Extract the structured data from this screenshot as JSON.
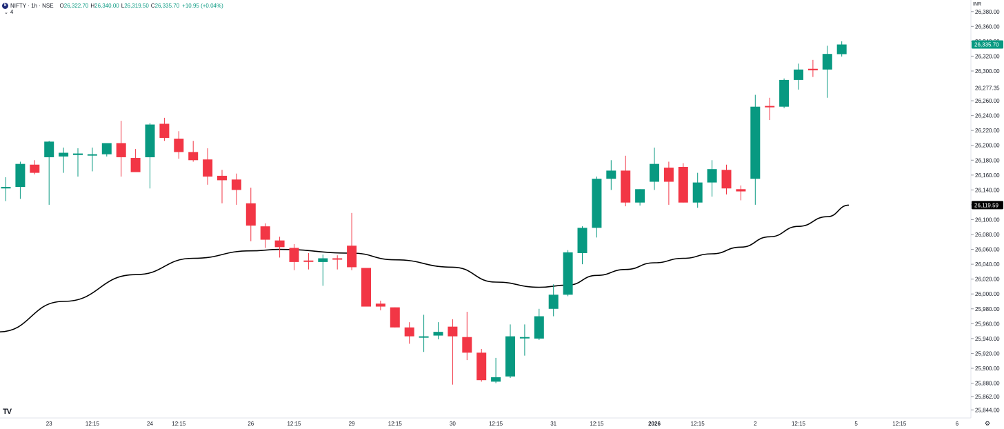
{
  "header": {
    "symbol": "NIFTY · 1h · NSE",
    "open_label": "O",
    "open": "26,322.70",
    "high_label": "H",
    "high": "26,340.00",
    "low_label": "L",
    "low": "26,319.50",
    "close_label": "C",
    "close": "26,335.70",
    "change": "+10.95 (+0.04%)",
    "indicator_count": "4"
  },
  "currency": "INR",
  "colors": {
    "up": "#089981",
    "down": "#f23645",
    "ma": "#000000",
    "axis_text": "#131722"
  },
  "chart_data": {
    "type": "candlestick",
    "ylim": [
      25835,
      26390
    ],
    "y_ticks": [
      25844,
      25862,
      25880,
      25900,
      25920,
      25940,
      25960,
      25980,
      26000,
      26020,
      26040,
      26060,
      26080,
      26100,
      26120,
      26140,
      26160,
      26180,
      26200,
      26220,
      26240,
      26260,
      26300,
      26320,
      26340,
      26360,
      26380
    ],
    "y_tick_labels": [
      "25,844.00",
      "25,862.00",
      "25,880.00",
      "25,900.00",
      "25,920.00",
      "25,940.00",
      "25,960.00",
      "25,980.00",
      "26,000.00",
      "26,020.00",
      "26,040.00",
      "26,060.00",
      "26,080.00",
      "26,100.00",
      "26,120.00",
      "26,140.00",
      "26,160.00",
      "26,180.00",
      "26,200.00",
      "26,220.00",
      "26,240.00",
      "26,260.00",
      "26,300.00",
      "26,320.00",
      "26,340.00",
      "26,360.00",
      "26,380.00"
    ],
    "x_labels": [
      {
        "index": 3,
        "label": "23",
        "bold": false
      },
      {
        "index": 6,
        "label": "12:15",
        "bold": false
      },
      {
        "index": 10,
        "label": "24",
        "bold": false
      },
      {
        "index": 12,
        "label": "12:15",
        "bold": false
      },
      {
        "index": 17,
        "label": "26",
        "bold": false
      },
      {
        "index": 20,
        "label": "12:15",
        "bold": false
      },
      {
        "index": 24,
        "label": "29",
        "bold": false
      },
      {
        "index": 27,
        "label": "12:15",
        "bold": false
      },
      {
        "index": 31,
        "label": "30",
        "bold": false
      },
      {
        "index": 34,
        "label": "12:15",
        "bold": false
      },
      {
        "index": 38,
        "label": "31",
        "bold": false
      },
      {
        "index": 41,
        "label": "12:15",
        "bold": false
      },
      {
        "index": 45,
        "label": "2026",
        "bold": true
      },
      {
        "index": 48,
        "label": "12:15",
        "bold": false
      },
      {
        "index": 52,
        "label": "2",
        "bold": false
      },
      {
        "index": 55,
        "label": "12:15",
        "bold": false
      },
      {
        "index": 59,
        "label": "5",
        "bold": false
      },
      {
        "index": 62,
        "label": "12:15",
        "bold": false
      },
      {
        "index": 66,
        "label": "6",
        "bold": false
      }
    ],
    "candles": [
      {
        "o": 26142,
        "h": 26157,
        "l": 26125,
        "c": 26144
      },
      {
        "o": 26144,
        "h": 26178,
        "l": 26128,
        "c": 26175
      },
      {
        "o": 26174,
        "h": 26180,
        "l": 26161,
        "c": 26163
      },
      {
        "o": 26184,
        "h": 26206,
        "l": 26120,
        "c": 26205
      },
      {
        "o": 26185,
        "h": 26197,
        "l": 26163,
        "c": 26190
      },
      {
        "o": 26187,
        "h": 26196,
        "l": 26158,
        "c": 26189
      },
      {
        "o": 26187,
        "h": 26197,
        "l": 26165,
        "c": 26188
      },
      {
        "o": 26188,
        "h": 26203,
        "l": 26185,
        "c": 26203
      },
      {
        "o": 26203,
        "h": 26233,
        "l": 26158,
        "c": 26184
      },
      {
        "o": 26183,
        "h": 26195,
        "l": 26165,
        "c": 26164
      },
      {
        "o": 26184,
        "h": 26230,
        "l": 26142,
        "c": 26228
      },
      {
        "o": 26229,
        "h": 26237,
        "l": 26206,
        "c": 26210
      },
      {
        "o": 26209,
        "h": 26219,
        "l": 26182,
        "c": 26191
      },
      {
        "o": 26191,
        "h": 26206,
        "l": 26178,
        "c": 26180
      },
      {
        "o": 26181,
        "h": 26196,
        "l": 26147,
        "c": 26158
      },
      {
        "o": 26159,
        "h": 26167,
        "l": 26122,
        "c": 26153
      },
      {
        "o": 26154,
        "h": 26162,
        "l": 26120,
        "c": 26140
      },
      {
        "o": 26122,
        "h": 26143,
        "l": 26071,
        "c": 26092
      },
      {
        "o": 26091,
        "h": 26095,
        "l": 26062,
        "c": 26073
      },
      {
        "o": 26072,
        "h": 26077,
        "l": 26049,
        "c": 26063
      },
      {
        "o": 26062,
        "h": 26067,
        "l": 26032,
        "c": 26043
      },
      {
        "o": 26045,
        "h": 26055,
        "l": 26033,
        "c": 26044
      },
      {
        "o": 26043,
        "h": 26053,
        "l": 26011,
        "c": 26048
      },
      {
        "o": 26048,
        "h": 26052,
        "l": 26033,
        "c": 26047
      },
      {
        "o": 26065,
        "h": 26109,
        "l": 26032,
        "c": 26036
      },
      {
        "o": 26035,
        "h": 26035,
        "l": 25983,
        "c": 25983
      },
      {
        "o": 25987,
        "h": 25991,
        "l": 25978,
        "c": 25983
      },
      {
        "o": 25982,
        "h": 25982,
        "l": 25955,
        "c": 25955
      },
      {
        "o": 25955,
        "h": 25962,
        "l": 25933,
        "c": 25943
      },
      {
        "o": 25943,
        "h": 25972,
        "l": 25922,
        "c": 25943
      },
      {
        "o": 25944,
        "h": 25962,
        "l": 25939,
        "c": 25949
      },
      {
        "o": 25956,
        "h": 25966,
        "l": 25878,
        "c": 25943
      },
      {
        "o": 25942,
        "h": 25976,
        "l": 25911,
        "c": 25921
      },
      {
        "o": 25921,
        "h": 25926,
        "l": 25882,
        "c": 25884
      },
      {
        "o": 25882,
        "h": 25914,
        "l": 25880,
        "c": 25888
      },
      {
        "o": 25889,
        "h": 25959,
        "l": 25887,
        "c": 25943
      },
      {
        "o": 25942,
        "h": 25959,
        "l": 25917,
        "c": 25942
      },
      {
        "o": 25940,
        "h": 25980,
        "l": 25938,
        "c": 25970
      },
      {
        "o": 25980,
        "h": 26013,
        "l": 25970,
        "c": 25999
      },
      {
        "o": 25999,
        "h": 26059,
        "l": 25997,
        "c": 26056
      },
      {
        "o": 26055,
        "h": 26091,
        "l": 26040,
        "c": 26089
      },
      {
        "o": 26089,
        "h": 26158,
        "l": 26076,
        "c": 26155
      },
      {
        "o": 26155,
        "h": 26180,
        "l": 26140,
        "c": 26166
      },
      {
        "o": 26166,
        "h": 26186,
        "l": 26118,
        "c": 26123
      },
      {
        "o": 26123,
        "h": 26141,
        "l": 26119,
        "c": 26141
      },
      {
        "o": 26151,
        "h": 26197,
        "l": 26140,
        "c": 26175
      },
      {
        "o": 26170,
        "h": 26178,
        "l": 26120,
        "c": 26151
      },
      {
        "o": 26171,
        "h": 26176,
        "l": 26123,
        "c": 26123
      },
      {
        "o": 26123,
        "h": 26163,
        "l": 26116,
        "c": 26150
      },
      {
        "o": 26150,
        "h": 26180,
        "l": 26131,
        "c": 26168
      },
      {
        "o": 26167,
        "h": 26174,
        "l": 26134,
        "c": 26142
      },
      {
        "o": 26141,
        "h": 26146,
        "l": 26126,
        "c": 26138
      },
      {
        "o": 26155,
        "h": 26268,
        "l": 26120,
        "c": 26252
      },
      {
        "o": 26253,
        "h": 26264,
        "l": 26234,
        "c": 26252
      },
      {
        "o": 26252,
        "h": 26290,
        "l": 26250,
        "c": 26288
      },
      {
        "o": 26288,
        "h": 26310,
        "l": 26275,
        "c": 26302
      },
      {
        "o": 26303,
        "h": 26315,
        "l": 26292,
        "c": 26301
      },
      {
        "o": 26302,
        "h": 26334,
        "l": 26264,
        "c": 26323
      },
      {
        "o": 26322.7,
        "h": 26340,
        "l": 26319.5,
        "c": 26335.7
      }
    ],
    "moving_average": {
      "points": [
        {
          "i": -0.5,
          "v": 25949
        },
        {
          "i": 4,
          "v": 25990
        },
        {
          "i": 9,
          "v": 26026
        },
        {
          "i": 13,
          "v": 26048
        },
        {
          "i": 17,
          "v": 26058
        },
        {
          "i": 19,
          "v": 26060
        },
        {
          "i": 24,
          "v": 26055
        },
        {
          "i": 27,
          "v": 26046
        },
        {
          "i": 31,
          "v": 26036
        },
        {
          "i": 34,
          "v": 26016
        },
        {
          "i": 37,
          "v": 26009
        },
        {
          "i": 39,
          "v": 26012
        },
        {
          "i": 41,
          "v": 26025
        },
        {
          "i": 43,
          "v": 26033
        },
        {
          "i": 45,
          "v": 26042
        },
        {
          "i": 47,
          "v": 26048
        },
        {
          "i": 49,
          "v": 26054
        },
        {
          "i": 51,
          "v": 26063
        },
        {
          "i": 53,
          "v": 26077
        },
        {
          "i": 55,
          "v": 26091
        },
        {
          "i": 57,
          "v": 26104
        },
        {
          "i": 58.5,
          "v": 26119.59
        }
      ]
    },
    "price_labels": [
      {
        "value": 26335.7,
        "label": "26,335.70",
        "kind": "last-price"
      },
      {
        "value": 26119.59,
        "label": "26,119.59",
        "kind": "ma-value"
      },
      {
        "value": 26277.35,
        "label": "26,277.35",
        "kind": "previous-close"
      }
    ]
  },
  "logo_text": "TV",
  "settings_icon": "gear-icon"
}
